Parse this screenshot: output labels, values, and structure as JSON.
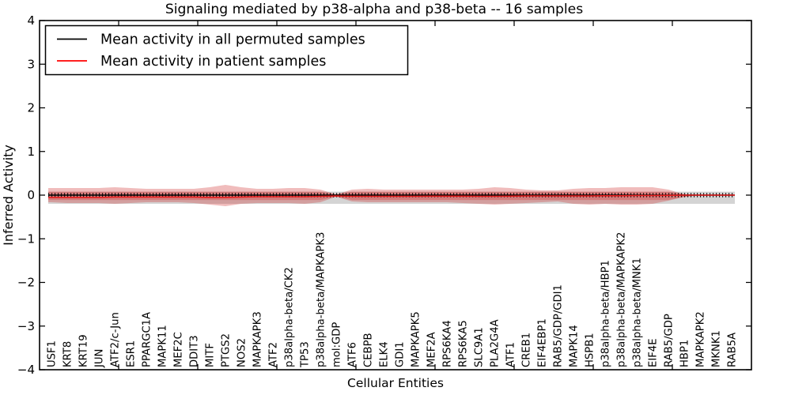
{
  "title": "Signaling mediated by p38-alpha and p38-beta -- 16 samples",
  "axes": {
    "ylabel": "Inferred Activity",
    "xlabel": "Cellular Entities",
    "yticks": [
      4,
      3,
      2,
      1,
      0,
      -1,
      -2,
      -3,
      -4
    ],
    "ylim": [
      -4,
      4
    ]
  },
  "legend": {
    "items": [
      {
        "label": "Mean activity in all permuted samples",
        "color": "#000000"
      },
      {
        "label": "Mean activity in patient samples",
        "color": "#ff0000"
      }
    ]
  },
  "colors": {
    "permuted_line": "#000000",
    "patient_line": "#e81c1c",
    "patient_band": "#d43c3c",
    "permuted_band": "#999999",
    "axis": "#000000"
  },
  "chart_data": {
    "type": "line",
    "title": "Signaling mediated by p38-alpha and p38-beta -- 16 samples",
    "xlabel": "Cellular Entities",
    "ylabel": "Inferred Activity",
    "ylim": [
      -4,
      4
    ],
    "grid": false,
    "legend_position": "upper left",
    "categories": [
      "USF1",
      "KRT8",
      "KRT19",
      "JUN",
      "ATF2/c-Jun",
      "ESR1",
      "PPARGC1A",
      "MAPK11",
      "MEF2C",
      "DDIT3",
      "MITF",
      "PTGS2",
      "NOS2",
      "MAPKAPK3",
      "ATF2",
      "p38alpha-beta/CK2",
      "TP53",
      "p38alpha-beta/MAPKAPK3",
      "mol:GDP",
      "ATF6",
      "CEBPB",
      "ELK4",
      "GDI1",
      "MAPKAPK5",
      "MEF2A",
      "RPS6KA4",
      "RPS6KA5",
      "SLC9A1",
      "PLA2G4A",
      "ATF1",
      "CREB1",
      "EIF4EBP1",
      "RAB5/GDP/GDI1",
      "MAPK14",
      "HSPB1",
      "p38alpha-beta/HBP1",
      "p38alpha-beta/MAPKAPK2",
      "p38alpha-beta/MNK1",
      "EIF4E",
      "RAB5/GDP",
      "HBP1",
      "MAPKAPK2",
      "MKNK1",
      "RAB5A"
    ],
    "series": [
      {
        "name": "Mean activity in all permuted samples",
        "color": "#000000",
        "marker": "tick",
        "values": [
          0,
          0,
          0,
          0,
          0,
          0,
          0,
          0,
          0,
          0,
          0,
          0,
          0,
          0,
          0,
          0,
          0,
          0,
          0,
          0,
          0,
          0,
          0,
          0,
          0,
          0,
          0,
          0,
          0,
          0,
          0,
          0,
          0,
          0,
          0,
          0,
          0,
          0,
          0,
          0,
          0,
          0,
          0,
          0
        ]
      },
      {
        "name": "Mean activity in patient samples",
        "color": "#e81c1c",
        "marker": "none",
        "values": [
          -0.054,
          -0.054,
          -0.054,
          -0.054,
          -0.045,
          -0.045,
          -0.045,
          -0.045,
          -0.045,
          -0.045,
          -0.054,
          -0.054,
          -0.045,
          -0.036,
          -0.036,
          -0.036,
          -0.036,
          -0.027,
          -0.018,
          -0.027,
          -0.027,
          -0.027,
          -0.027,
          -0.027,
          -0.023,
          -0.023,
          -0.023,
          -0.027,
          -0.027,
          -0.023,
          -0.018,
          -0.018,
          -0.018,
          -0.018,
          -0.018,
          -0.014,
          -0.014,
          -0.009,
          -0.009,
          -0.005,
          0,
          0,
          0,
          0
        ]
      }
    ],
    "bands": [
      {
        "name": "permuted-std-band",
        "color": "#999999",
        "opacity": 0.42,
        "upper": 0.08,
        "lower": -0.2
      },
      {
        "name": "patient-std-band",
        "color": "#d43c3c",
        "opacity": 0.34,
        "upper": [
          0.163,
          0.163,
          0.163,
          0.163,
          0.181,
          0.163,
          0.145,
          0.145,
          0.145,
          0.145,
          0.181,
          0.235,
          0.181,
          0.145,
          0.145,
          0.163,
          0.163,
          0.127,
          0.018,
          0.127,
          0.145,
          0.127,
          0.127,
          0.127,
          0.127,
          0.127,
          0.127,
          0.145,
          0.181,
          0.163,
          0.127,
          0.109,
          0.109,
          0.145,
          0.163,
          0.163,
          0.181,
          0.181,
          0.181,
          0.127,
          0.02,
          0,
          0,
          0
        ],
        "lower": [
          -0.163,
          -0.181,
          -0.181,
          -0.181,
          -0.199,
          -0.181,
          -0.163,
          -0.163,
          -0.163,
          -0.181,
          -0.217,
          -0.253,
          -0.199,
          -0.181,
          -0.181,
          -0.181,
          -0.199,
          -0.163,
          -0.036,
          -0.145,
          -0.163,
          -0.163,
          -0.163,
          -0.163,
          -0.163,
          -0.163,
          -0.181,
          -0.199,
          -0.217,
          -0.199,
          -0.181,
          -0.163,
          -0.145,
          -0.199,
          -0.217,
          -0.199,
          -0.217,
          -0.217,
          -0.199,
          -0.127,
          -0.04,
          0,
          0,
          0
        ]
      },
      {
        "name": "patient-std-inner-band",
        "color": "#d43c3c",
        "opacity": 0.34,
        "upper": 0.08,
        "lower": -0.11,
        "clip_to": 1
      }
    ]
  }
}
